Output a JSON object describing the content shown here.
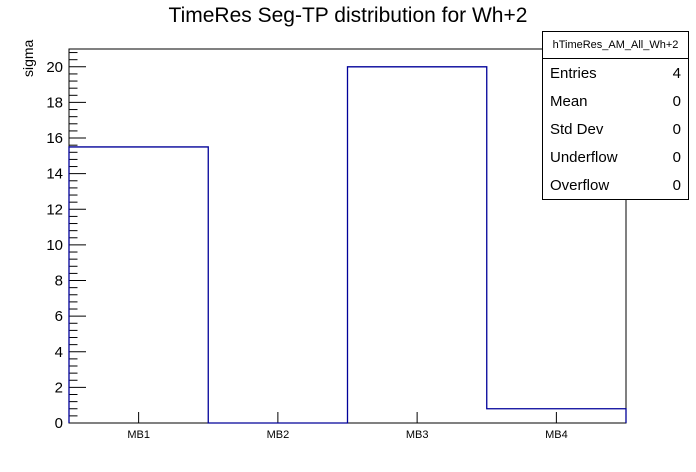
{
  "title": "TimeRes Seg-TP distribution for Wh+2",
  "stats_box": {
    "header": "hTimeRes_AM_All_Wh+2",
    "rows": [
      {
        "label": "Entries",
        "value": "4"
      },
      {
        "label": "Mean",
        "value": "0"
      },
      {
        "label": "Std Dev",
        "value": "0"
      },
      {
        "label": "Underflow",
        "value": "0"
      },
      {
        "label": "Overflow",
        "value": "0"
      }
    ]
  },
  "chart_data": {
    "type": "bar",
    "subtype": "root-histogram-outline",
    "title": "TimeRes Seg-TP distribution for Wh+2",
    "categories": [
      "MB1",
      "MB2",
      "MB3",
      "MB4"
    ],
    "values": [
      15.5,
      0,
      20,
      0.8
    ],
    "xlabel": "",
    "ylabel": "sigma",
    "ylim": [
      0,
      21
    ],
    "y_major_tick_step": 2,
    "y_minor_tick_step": 0.4,
    "y_tick_labels": [
      "0",
      "2",
      "4",
      "6",
      "8",
      "10",
      "12",
      "14",
      "16",
      "18",
      "20"
    ],
    "grid": false,
    "legend_position": "none",
    "line_color": "#000099",
    "axis_color": "#000000",
    "background_color": "#ffffff"
  }
}
